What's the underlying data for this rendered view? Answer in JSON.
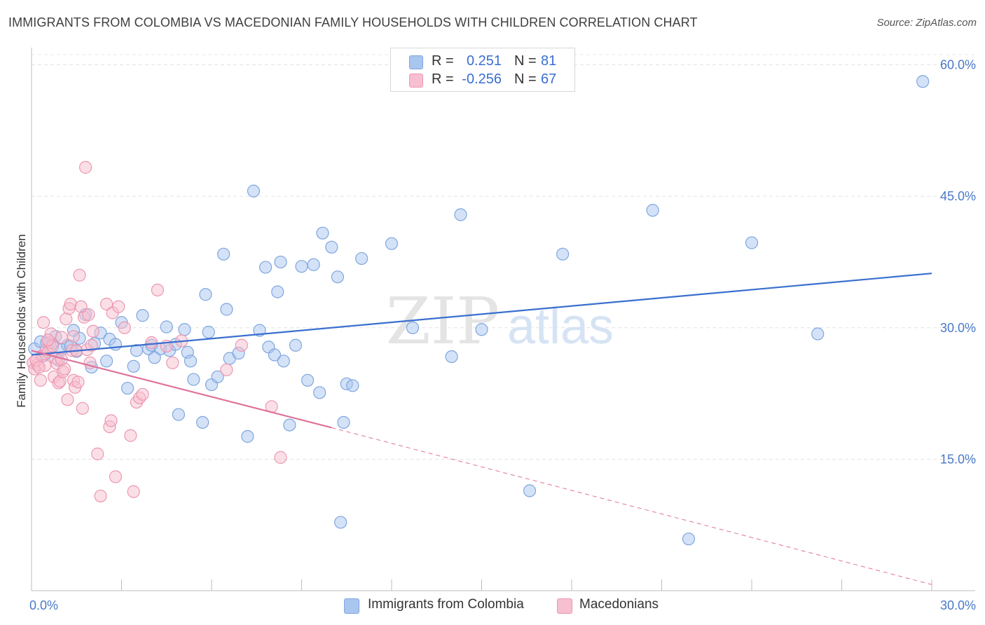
{
  "header": {
    "title": "IMMIGRANTS FROM COLOMBIA VS MACEDONIAN FAMILY HOUSEHOLDS WITH CHILDREN CORRELATION CHART",
    "source": "Source: ZipAtlas.com"
  },
  "watermark": {
    "zip": "ZIP",
    "atlas": "atlas"
  },
  "legend": {
    "rows": [
      {
        "r_label": "R =",
        "r_value": "0.251",
        "n_label": "N =",
        "n_value": "81",
        "color": "#a9c6ef",
        "border": "#7fa6df"
      },
      {
        "r_label": "R =",
        "r_value": "-0.256",
        "n_label": "N =",
        "n_value": "67",
        "color": "#f7bfd0",
        "border": "#ec97b1"
      }
    ]
  },
  "bottom_legend": {
    "items": [
      {
        "label": "Immigrants from Colombia",
        "color": "#a9c6ef",
        "border": "#7fa6df"
      },
      {
        "label": "Macedonians",
        "color": "#f7bfd0",
        "border": "#ec97b1"
      }
    ]
  },
  "chart_data": {
    "type": "scatter",
    "title": "IMMIGRANTS FROM COLOMBIA VS MACEDONIAN FAMILY HOUSEHOLDS WITH CHILDREN CORRELATION CHART",
    "xlabel": "",
    "ylabel": "Family Households with Children",
    "xlim": [
      0,
      30
    ],
    "ylim": [
      0,
      61.8
    ],
    "x_ticks": [
      {
        "value": 0,
        "label": "0.0%"
      },
      {
        "value": 30,
        "label": "30.0%"
      }
    ],
    "y_ticks": [
      {
        "value": 15,
        "label": "15.0%"
      },
      {
        "value": 30,
        "label": "30.0%"
      },
      {
        "value": 45,
        "label": "45.0%"
      },
      {
        "value": 60,
        "label": "60.0%"
      }
    ],
    "grid": true,
    "legend_position": "top-center",
    "series": [
      {
        "name": "Immigrants from Colombia",
        "color": "#a9c6ef",
        "stroke": "#7fa6df",
        "trend": {
          "x": [
            0,
            30
          ],
          "y": [
            26.9,
            36.2
          ],
          "color": "#3a6fd0",
          "style": "solid"
        },
        "points": [
          [
            0.1,
            27.6
          ],
          [
            0.3,
            28.4
          ],
          [
            0.5,
            28.3
          ],
          [
            0.7,
            28.2
          ],
          [
            0.9,
            26.3
          ],
          [
            0.8,
            29.0
          ],
          [
            1.0,
            27.5
          ],
          [
            1.2,
            28.0
          ],
          [
            1.4,
            29.7
          ],
          [
            1.5,
            27.3
          ],
          [
            1.6,
            28.8
          ],
          [
            1.8,
            31.5
          ],
          [
            2.1,
            28.2
          ],
          [
            2.3,
            29.4
          ],
          [
            2.5,
            26.2
          ],
          [
            2.6,
            28.7
          ],
          [
            2.8,
            28.1
          ],
          [
            3.0,
            30.6
          ],
          [
            3.2,
            23.1
          ],
          [
            3.4,
            25.6
          ],
          [
            3.5,
            27.4
          ],
          [
            3.7,
            31.4
          ],
          [
            3.9,
            27.6
          ],
          [
            4.0,
            28.0
          ],
          [
            4.1,
            26.6
          ],
          [
            4.3,
            27.6
          ],
          [
            4.5,
            30.1
          ],
          [
            4.6,
            27.4
          ],
          [
            4.8,
            28.1
          ],
          [
            4.9,
            20.1
          ],
          [
            5.1,
            29.8
          ],
          [
            5.2,
            27.2
          ],
          [
            5.3,
            26.2
          ],
          [
            5.4,
            24.1
          ],
          [
            5.7,
            19.2
          ],
          [
            5.8,
            33.8
          ],
          [
            5.9,
            29.5
          ],
          [
            6.0,
            23.5
          ],
          [
            6.2,
            24.4
          ],
          [
            6.4,
            38.4
          ],
          [
            6.5,
            32.1
          ],
          [
            6.6,
            26.5
          ],
          [
            6.9,
            27.1
          ],
          [
            7.2,
            17.6
          ],
          [
            7.4,
            45.6
          ],
          [
            7.6,
            29.7
          ],
          [
            7.8,
            36.9
          ],
          [
            7.9,
            27.8
          ],
          [
            8.1,
            26.9
          ],
          [
            8.2,
            34.1
          ],
          [
            8.3,
            37.5
          ],
          [
            8.4,
            26.2
          ],
          [
            8.6,
            18.9
          ],
          [
            8.8,
            28.0
          ],
          [
            9.0,
            37.0
          ],
          [
            9.2,
            24.0
          ],
          [
            9.4,
            37.2
          ],
          [
            9.6,
            22.6
          ],
          [
            9.7,
            40.8
          ],
          [
            10.0,
            39.2
          ],
          [
            10.2,
            35.8
          ],
          [
            10.4,
            19.2
          ],
          [
            10.5,
            23.6
          ],
          [
            10.7,
            23.4
          ],
          [
            10.3,
            7.8
          ],
          [
            11.0,
            37.9
          ],
          [
            12.0,
            39.6
          ],
          [
            12.7,
            30.0
          ],
          [
            14.0,
            26.7
          ],
          [
            14.3,
            42.9
          ],
          [
            15.0,
            29.8
          ],
          [
            16.6,
            11.4
          ],
          [
            17.7,
            38.4
          ],
          [
            20.7,
            43.4
          ],
          [
            21.9,
            5.9
          ],
          [
            24.0,
            39.7
          ],
          [
            26.2,
            29.3
          ],
          [
            29.7,
            58.1
          ],
          [
            0.4,
            26.8
          ],
          [
            1.3,
            27.9
          ],
          [
            2.0,
            25.5
          ]
        ]
      },
      {
        "name": "Macedonians",
        "color": "#f7bfd0",
        "stroke": "#ec97b1",
        "trend": {
          "x": [
            0,
            10
          ],
          "y": [
            27.4,
            18.6
          ],
          "color": "#e0729b",
          "style": "solid",
          "dashed_extension": {
            "x": [
              10,
              30
            ],
            "y": [
              18.6,
              0.7
            ]
          }
        },
        "points": [
          [
            0.05,
            26.0
          ],
          [
            0.1,
            25.3
          ],
          [
            0.2,
            25.8
          ],
          [
            0.3,
            24.0
          ],
          [
            0.35,
            26.8
          ],
          [
            0.4,
            30.6
          ],
          [
            0.45,
            25.7
          ],
          [
            0.5,
            27.5
          ],
          [
            0.55,
            27.2
          ],
          [
            0.6,
            28.3
          ],
          [
            0.65,
            29.3
          ],
          [
            0.7,
            27.9
          ],
          [
            0.75,
            24.4
          ],
          [
            0.8,
            26.5
          ],
          [
            0.85,
            25.9
          ],
          [
            0.9,
            23.7
          ],
          [
            0.95,
            23.9
          ],
          [
            1.0,
            28.9
          ],
          [
            1.05,
            25.0
          ],
          [
            1.1,
            25.3
          ],
          [
            1.15,
            31.0
          ],
          [
            1.2,
            21.8
          ],
          [
            1.25,
            32.2
          ],
          [
            1.3,
            32.7
          ],
          [
            1.35,
            27.4
          ],
          [
            1.4,
            24.0
          ],
          [
            1.45,
            23.2
          ],
          [
            1.5,
            27.4
          ],
          [
            1.55,
            23.8
          ],
          [
            1.6,
            36.0
          ],
          [
            1.65,
            32.4
          ],
          [
            1.7,
            20.8
          ],
          [
            1.75,
            31.2
          ],
          [
            1.8,
            48.3
          ],
          [
            1.85,
            27.5
          ],
          [
            1.9,
            31.5
          ],
          [
            1.95,
            26.0
          ],
          [
            2.0,
            28.0
          ],
          [
            2.05,
            29.6
          ],
          [
            2.2,
            15.6
          ],
          [
            2.5,
            32.7
          ],
          [
            2.6,
            18.7
          ],
          [
            2.65,
            19.4
          ],
          [
            2.7,
            31.7
          ],
          [
            2.8,
            13.0
          ],
          [
            2.3,
            10.8
          ],
          [
            2.9,
            32.4
          ],
          [
            3.1,
            30.0
          ],
          [
            3.3,
            17.7
          ],
          [
            3.4,
            11.3
          ],
          [
            3.5,
            21.5
          ],
          [
            3.6,
            22.0
          ],
          [
            3.7,
            22.4
          ],
          [
            4.0,
            28.3
          ],
          [
            4.2,
            34.3
          ],
          [
            4.5,
            27.9
          ],
          [
            4.7,
            26.0
          ],
          [
            5.0,
            28.5
          ],
          [
            6.5,
            25.2
          ],
          [
            7.0,
            28.0
          ],
          [
            8.0,
            21.0
          ],
          [
            8.3,
            15.2
          ],
          [
            0.15,
            26.3
          ],
          [
            0.25,
            25.5
          ],
          [
            0.55,
            28.6
          ],
          [
            1.0,
            26.4
          ],
          [
            1.4,
            29.0
          ]
        ]
      }
    ]
  }
}
